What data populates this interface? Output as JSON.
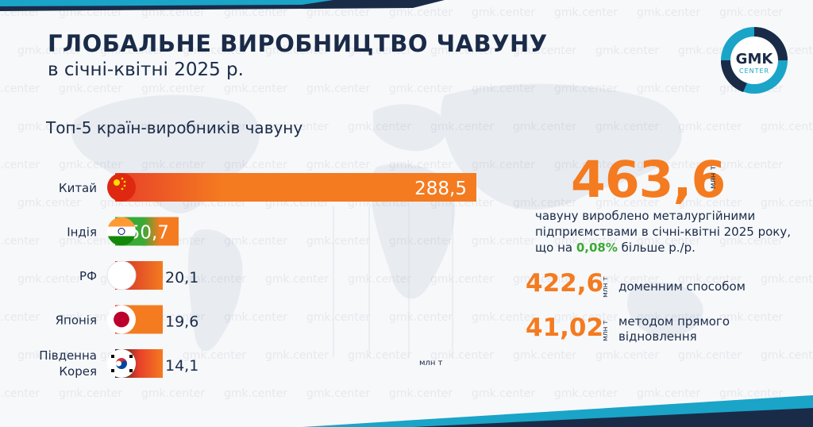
{
  "header": {
    "title": "ГЛОБАЛЬНЕ ВИРОБНИЦТВО ЧАВУНУ",
    "subtitle": "в січні-квітні 2025 р."
  },
  "logo": {
    "line1": "GMK",
    "line2": "CENTER"
  },
  "watermark_text": "gmk.center",
  "chart_data": {
    "type": "bar",
    "orientation": "horizontal",
    "title": "Топ-5 країн-виробників чавуну",
    "unit_label": "млн т",
    "categories": [
      "Китай",
      "Індія",
      "РФ",
      "Японія",
      "Південна Корея"
    ],
    "values": [
      288.5,
      50.7,
      20.1,
      19.6,
      14.1
    ],
    "value_labels": [
      "288,5",
      "50,7",
      "20,1",
      "19,6",
      "14,1"
    ],
    "flags": [
      "china-flag-icon",
      "india-flag-icon",
      "russia-flag-icon",
      "japan-flag-icon",
      "south-korea-flag-icon"
    ],
    "bar_color": "#f47b20",
    "xlim": [
      0,
      288.5
    ]
  },
  "summary": {
    "total_value": "463,6",
    "total_unit": "млн т",
    "description_before": "чавуну вироблено металургійними підприємствами в січні-квітні 2025 року, що на ",
    "description_highlight": "0,08%",
    "description_after": " більше р./р."
  },
  "breakdown": [
    {
      "value": "422,6",
      "unit": "млн т",
      "label": "доменним способом"
    },
    {
      "value": "41,02",
      "unit": "млн т",
      "label": "методом прямого відновлення"
    }
  ],
  "colors": {
    "navy": "#1a2b48",
    "orange": "#f47b20",
    "green": "#3aa935",
    "teal": "#1aa4c8"
  }
}
